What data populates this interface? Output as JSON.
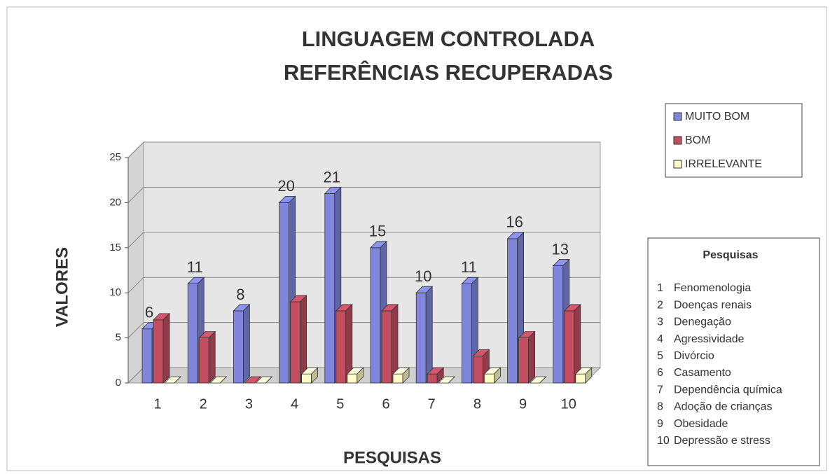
{
  "chart_data": {
    "type": "bar3d",
    "title": "LINGUAGEM CONTROLADA",
    "subtitle": "REFERÊNCIAS RECUPERADAS",
    "ylabel": "VALORES",
    "xlabel": "PESQUISAS",
    "categories": [
      "1",
      "2",
      "3",
      "4",
      "5",
      "6",
      "7",
      "8",
      "9",
      "10"
    ],
    "series": [
      {
        "name": "MUITO BOM",
        "color": "#7f86dc",
        "values": [
          6,
          11,
          8,
          20,
          21,
          15,
          10,
          11,
          16,
          13
        ],
        "data_labels": true
      },
      {
        "name": "BOM",
        "color": "#c24e60",
        "values": [
          7,
          5,
          0,
          9,
          8,
          8,
          1,
          3,
          5,
          8
        ]
      },
      {
        "name": "IRRELEVANTE",
        "color": "#fffcc8",
        "values": [
          0,
          0,
          0,
          1,
          1,
          1,
          0,
          1,
          0,
          1
        ]
      }
    ],
    "ylim": [
      0,
      25
    ],
    "yticks": [
      0,
      5,
      10,
      15,
      20,
      25
    ],
    "grid": true,
    "topics": {
      "title": "Pesquisas",
      "items": [
        "Fenomenologia",
        "Doenças renais",
        "Denegação",
        "Agressividade",
        "Divórcio",
        "Casamento",
        "Dependência química",
        "Adoção de crianças",
        "Obesidade",
        "Depressão e stress"
      ]
    }
  }
}
